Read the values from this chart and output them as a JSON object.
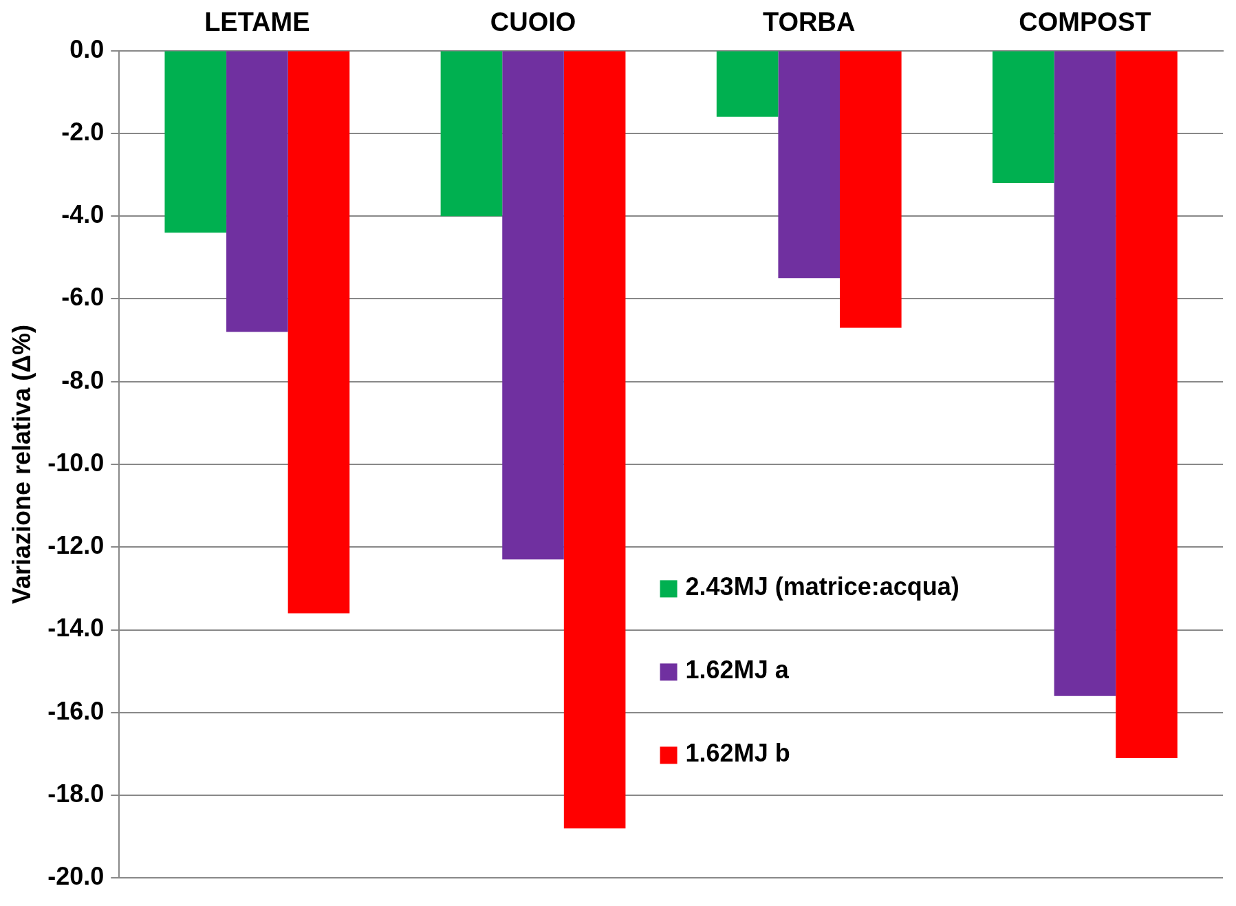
{
  "chart_data": {
    "type": "bar",
    "ylabel": "Variazione relativa (Δ%)",
    "categories": [
      "LETAME",
      "CUOIO",
      "TORBA",
      "COMPOST"
    ],
    "series": [
      {
        "name": "2.43MJ (matrice:acqua)",
        "color": "#00b050",
        "values": [
          -4.4,
          -4.0,
          -1.6,
          -3.2
        ]
      },
      {
        "name": "1.62MJ a",
        "color": "#7030a0",
        "values": [
          -6.8,
          -12.3,
          -5.5,
          -15.6
        ]
      },
      {
        "name": "1.62MJ b",
        "color": "#ff0000",
        "values": [
          -13.6,
          -18.8,
          -6.7,
          -17.1
        ]
      }
    ],
    "ylim": [
      -20,
      0
    ],
    "yticks": [
      {
        "value": 0,
        "label": "0.0"
      },
      {
        "value": -2,
        "label": "-2.0"
      },
      {
        "value": -4,
        "label": "-4.0"
      },
      {
        "value": -6,
        "label": "-6.0"
      },
      {
        "value": -8,
        "label": "-8.0"
      },
      {
        "value": -10,
        "label": "-10.0"
      },
      {
        "value": -12,
        "label": "-12.0"
      },
      {
        "value": -14,
        "label": "-14.0"
      },
      {
        "value": -16,
        "label": "-16.0"
      },
      {
        "value": -18,
        "label": "-18.0"
      },
      {
        "value": -20,
        "label": "-20.0"
      }
    ],
    "grid": "y",
    "legend": "bottom"
  }
}
